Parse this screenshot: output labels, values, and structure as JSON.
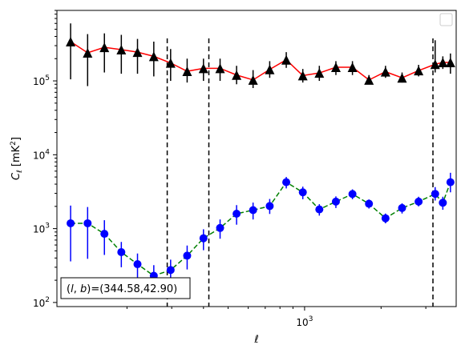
{
  "chart_data": {
    "type": "scatter",
    "title": "",
    "xlabel": "ℓ",
    "ylabel_symbol": "C",
    "ylabel_subscript": "ℓ",
    "ylabel_units": "[mK",
    "ylabel_units_sup": "2",
    "ylabel_units_close": "]",
    "xscale": "log",
    "yscale": "log",
    "xlim": [
      106,
      3950
    ],
    "ylim": [
      88,
      900000
    ],
    "x_major_ticks": [
      {
        "value": 1000,
        "base": "10",
        "exp": "3"
      }
    ],
    "y_major_ticks": [
      {
        "value": 100,
        "base": "10",
        "exp": "2"
      },
      {
        "value": 1000,
        "base": "10",
        "exp": "3"
      },
      {
        "value": 10000,
        "base": "10",
        "exp": "4"
      },
      {
        "value": 100000,
        "base": "10",
        "exp": "5"
      }
    ],
    "grid": false,
    "legend": "top-right (empty)",
    "vlines": [
      288,
      420,
      3200
    ],
    "annotation": {
      "text": "(l, b)=(344.58,42.90)",
      "prefix_l": "l",
      "prefix_b": "b",
      "suffix": "=(344.58,42.90)",
      "position": "bottom-left"
    },
    "series": [
      {
        "marker": "triangle",
        "line": "solid",
        "marker_color": "#000000",
        "line_color": "#ff0000",
        "x": [
          120,
          140,
          163,
          190,
          220,
          255,
          297,
          345,
          400,
          465,
          540,
          627,
          729,
          847,
          984,
          1143,
          1328,
          1543,
          1792,
          2082,
          2419,
          2810,
          3265,
          3500,
          3750
        ],
        "y": [
          340000,
          240000,
          285000,
          265000,
          245000,
          215000,
          175000,
          135000,
          148000,
          148000,
          120000,
          103000,
          143000,
          193000,
          118000,
          128000,
          153000,
          153000,
          103000,
          133000,
          110000,
          138000,
          168000,
          178000,
          178000
        ],
        "y_low": [
          105000,
          85000,
          130000,
          125000,
          125000,
          115000,
          100000,
          95000,
          100000,
          100000,
          90000,
          80000,
          110000,
          150000,
          95000,
          100000,
          120000,
          120000,
          90000,
          110000,
          95000,
          115000,
          130000,
          145000,
          125000
        ],
        "y_high": [
          600000,
          430000,
          440000,
          420000,
          370000,
          340000,
          270000,
          200000,
          200000,
          200000,
          160000,
          140000,
          185000,
          245000,
          145000,
          160000,
          185000,
          185000,
          120000,
          160000,
          130000,
          165000,
          355000,
          215000,
          235000
        ]
      },
      {
        "marker": "circle",
        "line": "dashed",
        "marker_color": "#0000ff",
        "line_color": "#008000",
        "x": [
          120,
          140,
          163,
          190,
          220,
          255,
          297,
          345,
          400,
          465,
          540,
          627,
          729,
          847,
          984,
          1143,
          1328,
          1543,
          1792,
          2082,
          2419,
          2810,
          3265,
          3500,
          3750
        ],
        "y": [
          1180,
          1180,
          850,
          480,
          330,
          230,
          275,
          430,
          740,
          1020,
          1590,
          1780,
          2020,
          4250,
          3100,
          1820,
          2320,
          2940,
          2170,
          1380,
          1900,
          2320,
          2950,
          2240,
          4250
        ],
        "y_low": [
          360,
          390,
          440,
          300,
          200,
          140,
          170,
          280,
          510,
          730,
          1130,
          1330,
          1580,
          3500,
          2500,
          1500,
          1900,
          2500,
          1870,
          1180,
          1600,
          2000,
          2400,
          1800,
          3100
        ],
        "y_high": [
          2050,
          1960,
          1300,
          660,
          460,
          320,
          380,
          590,
          980,
          1330,
          2080,
          2250,
          2520,
          5000,
          3700,
          2140,
          2730,
          3400,
          2480,
          1600,
          2200,
          2700,
          3650,
          2700,
          5700
        ]
      }
    ]
  }
}
